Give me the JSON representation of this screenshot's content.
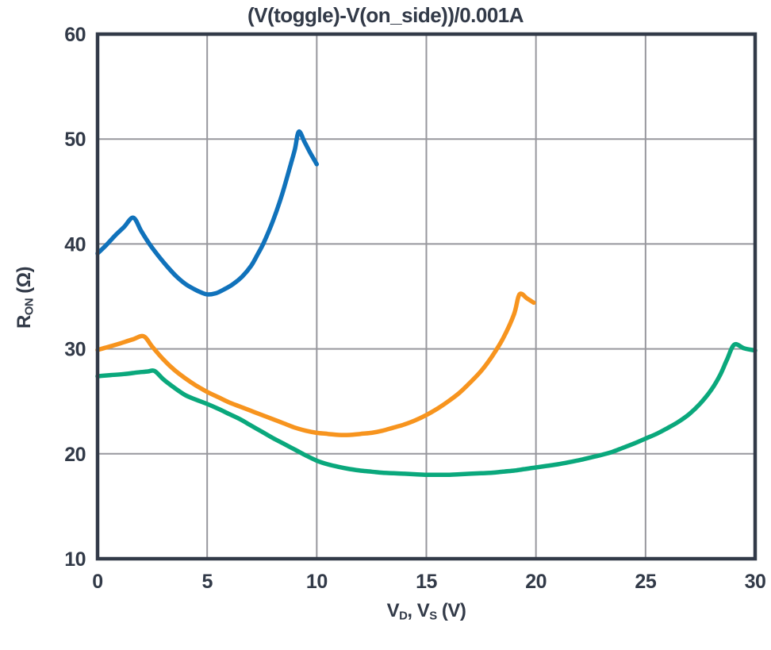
{
  "chart_data": {
    "type": "line",
    "title": "(V(toggle)-V(on_side))/0.001A",
    "xlabel": {
      "p1": "V",
      "s1": "D",
      "p2": ", V",
      "s2": "S",
      "p3": " (V)"
    },
    "ylabel": {
      "base": "R",
      "sub": "ON",
      "unit": " (Ω)"
    },
    "xlim": [
      0,
      30
    ],
    "ylim": [
      10,
      60
    ],
    "x_ticks": [
      0,
      5,
      10,
      15,
      20,
      25,
      30
    ],
    "y_ticks": [
      10,
      20,
      30,
      40,
      50,
      60
    ],
    "grid": true,
    "legend": "none",
    "axis_color": "#323A48",
    "grid_color": "#97979D",
    "tick_label_color": "#323A48",
    "series": [
      {
        "name": "blue",
        "color": "#1072BB",
        "points": [
          [
            0,
            39.1
          ],
          [
            0.4,
            39.9
          ],
          [
            0.8,
            40.8
          ],
          [
            1.2,
            41.6
          ],
          [
            1.63,
            42.5
          ],
          [
            2.0,
            41.2
          ],
          [
            2.4,
            39.9
          ],
          [
            2.8,
            38.8
          ],
          [
            3.2,
            37.8
          ],
          [
            3.6,
            36.9
          ],
          [
            4.0,
            36.2
          ],
          [
            4.4,
            35.7
          ],
          [
            4.7,
            35.4
          ],
          [
            5.0,
            35.2
          ],
          [
            5.4,
            35.3
          ],
          [
            5.8,
            35.7
          ],
          [
            6.2,
            36.2
          ],
          [
            6.6,
            36.9
          ],
          [
            7.0,
            37.9
          ],
          [
            7.3,
            39.0
          ],
          [
            7.6,
            40.2
          ],
          [
            8.0,
            42.2
          ],
          [
            8.4,
            44.6
          ],
          [
            8.8,
            47.5
          ],
          [
            9.0,
            49.0
          ],
          [
            9.18,
            50.7
          ],
          [
            9.45,
            49.7
          ],
          [
            9.7,
            48.7
          ],
          [
            10.0,
            47.6
          ]
        ]
      },
      {
        "name": "orange",
        "color": "#F7941E",
        "points": [
          [
            0,
            29.9
          ],
          [
            0.5,
            30.2
          ],
          [
            1.0,
            30.5
          ],
          [
            1.6,
            30.9
          ],
          [
            2.1,
            31.2
          ],
          [
            2.5,
            30.2
          ],
          [
            3.0,
            29.0
          ],
          [
            3.5,
            28.0
          ],
          [
            4.0,
            27.2
          ],
          [
            4.5,
            26.5
          ],
          [
            5.0,
            25.9
          ],
          [
            5.5,
            25.4
          ],
          [
            6.0,
            24.9
          ],
          [
            6.5,
            24.5
          ],
          [
            7.0,
            24.1
          ],
          [
            7.5,
            23.7
          ],
          [
            8.0,
            23.3
          ],
          [
            8.5,
            22.9
          ],
          [
            9.0,
            22.5
          ],
          [
            9.5,
            22.2
          ],
          [
            10.0,
            22.0
          ],
          [
            10.5,
            21.9
          ],
          [
            11.0,
            21.8
          ],
          [
            11.5,
            21.8
          ],
          [
            12.0,
            21.9
          ],
          [
            12.5,
            22.0
          ],
          [
            13.0,
            22.2
          ],
          [
            13.5,
            22.5
          ],
          [
            14.0,
            22.8
          ],
          [
            14.5,
            23.2
          ],
          [
            15.0,
            23.7
          ],
          [
            15.5,
            24.3
          ],
          [
            16.0,
            25.0
          ],
          [
            16.5,
            25.8
          ],
          [
            17.0,
            26.8
          ],
          [
            17.5,
            27.9
          ],
          [
            18.0,
            29.3
          ],
          [
            18.5,
            31.0
          ],
          [
            19.0,
            33.3
          ],
          [
            19.25,
            35.2
          ],
          [
            19.6,
            34.8
          ],
          [
            19.9,
            34.4
          ]
        ]
      },
      {
        "name": "green",
        "color": "#0AA87C",
        "points": [
          [
            0,
            27.4
          ],
          [
            0.6,
            27.5
          ],
          [
            1.2,
            27.6
          ],
          [
            1.8,
            27.75
          ],
          [
            2.3,
            27.85
          ],
          [
            2.6,
            27.9
          ],
          [
            3.0,
            27.1
          ],
          [
            3.5,
            26.3
          ],
          [
            4.0,
            25.6
          ],
          [
            4.5,
            25.15
          ],
          [
            5.0,
            24.75
          ],
          [
            5.5,
            24.3
          ],
          [
            6.0,
            23.8
          ],
          [
            6.5,
            23.3
          ],
          [
            7.0,
            22.7
          ],
          [
            7.5,
            22.1
          ],
          [
            8.0,
            21.5
          ],
          [
            8.5,
            20.95
          ],
          [
            9.0,
            20.4
          ],
          [
            9.5,
            19.85
          ],
          [
            10.0,
            19.35
          ],
          [
            10.5,
            19.0
          ],
          [
            11.0,
            18.75
          ],
          [
            11.5,
            18.55
          ],
          [
            12.0,
            18.4
          ],
          [
            12.5,
            18.3
          ],
          [
            13.0,
            18.2
          ],
          [
            13.5,
            18.15
          ],
          [
            14.0,
            18.1
          ],
          [
            14.5,
            18.05
          ],
          [
            15.0,
            18.0
          ],
          [
            15.5,
            18.0
          ],
          [
            16.0,
            18.0
          ],
          [
            16.5,
            18.05
          ],
          [
            17.0,
            18.1
          ],
          [
            17.5,
            18.15
          ],
          [
            18.0,
            18.2
          ],
          [
            18.5,
            18.3
          ],
          [
            19.0,
            18.4
          ],
          [
            19.5,
            18.55
          ],
          [
            20.0,
            18.7
          ],
          [
            20.5,
            18.85
          ],
          [
            21.0,
            19.0
          ],
          [
            21.5,
            19.2
          ],
          [
            22.0,
            19.4
          ],
          [
            22.5,
            19.65
          ],
          [
            23.0,
            19.9
          ],
          [
            23.5,
            20.2
          ],
          [
            24.0,
            20.6
          ],
          [
            24.5,
            21.0
          ],
          [
            25.0,
            21.45
          ],
          [
            25.5,
            21.9
          ],
          [
            26.0,
            22.45
          ],
          [
            26.5,
            23.05
          ],
          [
            27.0,
            23.8
          ],
          [
            27.5,
            24.8
          ],
          [
            28.0,
            26.1
          ],
          [
            28.4,
            27.5
          ],
          [
            28.7,
            28.9
          ],
          [
            29.05,
            30.4
          ],
          [
            29.5,
            30.05
          ],
          [
            30.0,
            29.85
          ]
        ]
      }
    ]
  }
}
